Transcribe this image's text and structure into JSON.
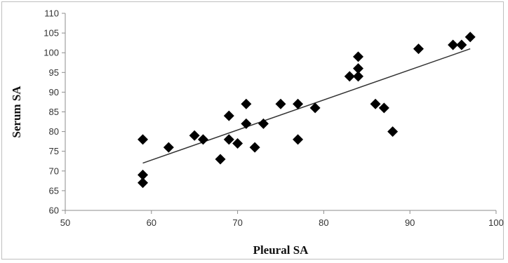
{
  "chart_data": {
    "type": "scatter",
    "xlabel": "Pleural SA",
    "ylabel": "Serum SA",
    "xlim": [
      50,
      100
    ],
    "ylim": [
      60,
      110
    ],
    "xticks": [
      50,
      60,
      70,
      80,
      90,
      100
    ],
    "yticks": [
      60,
      65,
      70,
      75,
      80,
      85,
      90,
      95,
      100,
      105,
      110
    ],
    "grid": false,
    "legend": "none",
    "marker": "diamond",
    "marker_color": "#000000",
    "points": [
      {
        "x": 59,
        "y": 78
      },
      {
        "x": 59,
        "y": 69
      },
      {
        "x": 59,
        "y": 67
      },
      {
        "x": 62,
        "y": 76
      },
      {
        "x": 65,
        "y": 79
      },
      {
        "x": 66,
        "y": 78
      },
      {
        "x": 68,
        "y": 73
      },
      {
        "x": 69,
        "y": 84
      },
      {
        "x": 69,
        "y": 78
      },
      {
        "x": 70,
        "y": 77
      },
      {
        "x": 71,
        "y": 87
      },
      {
        "x": 71,
        "y": 82
      },
      {
        "x": 72,
        "y": 76
      },
      {
        "x": 73,
        "y": 82
      },
      {
        "x": 75,
        "y": 87
      },
      {
        "x": 77,
        "y": 87
      },
      {
        "x": 77,
        "y": 78
      },
      {
        "x": 79,
        "y": 86
      },
      {
        "x": 83,
        "y": 94
      },
      {
        "x": 84,
        "y": 99
      },
      {
        "x": 84,
        "y": 96
      },
      {
        "x": 84,
        "y": 94
      },
      {
        "x": 86,
        "y": 87
      },
      {
        "x": 87,
        "y": 86
      },
      {
        "x": 88,
        "y": 80
      },
      {
        "x": 91,
        "y": 101
      },
      {
        "x": 95,
        "y": 102
      },
      {
        "x": 96,
        "y": 102
      },
      {
        "x": 97,
        "y": 104
      }
    ],
    "trendline": {
      "type": "linear",
      "from": {
        "x": 59,
        "y": 72
      },
      "to": {
        "x": 97,
        "y": 101
      },
      "color": "#333333"
    }
  }
}
